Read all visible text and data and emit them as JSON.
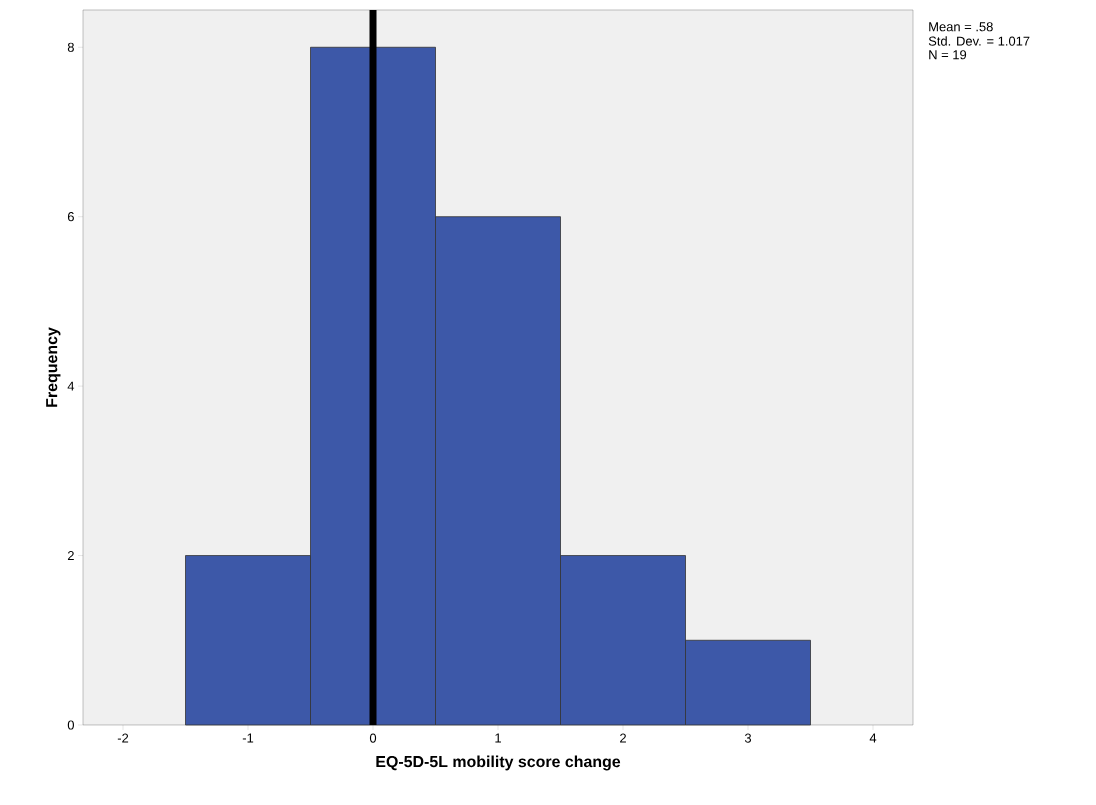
{
  "chart_data": {
    "type": "histogram",
    "xlabel": "EQ-5D-5L mobility score change",
    "ylabel": "Frequency",
    "bins": [
      -1.5,
      -0.5,
      0.5,
      1.5,
      2.5,
      3.5
    ],
    "values": [
      2,
      8,
      6,
      2,
      1
    ],
    "color": "#3d58a8",
    "xlim": [
      -2.32,
      4.32
    ],
    "ylim": [
      0,
      8.44
    ],
    "xticks": [
      -2,
      -1,
      0,
      1,
      2,
      3,
      4
    ],
    "yticks": [
      0,
      2,
      4,
      6,
      8
    ],
    "ref_lines": [
      {
        "axis": "x",
        "value": 0,
        "color": "#000000"
      }
    ],
    "annotations": [
      "Mean = .58",
      "Std. Dev. = 1.017",
      "N = 19"
    ]
  }
}
